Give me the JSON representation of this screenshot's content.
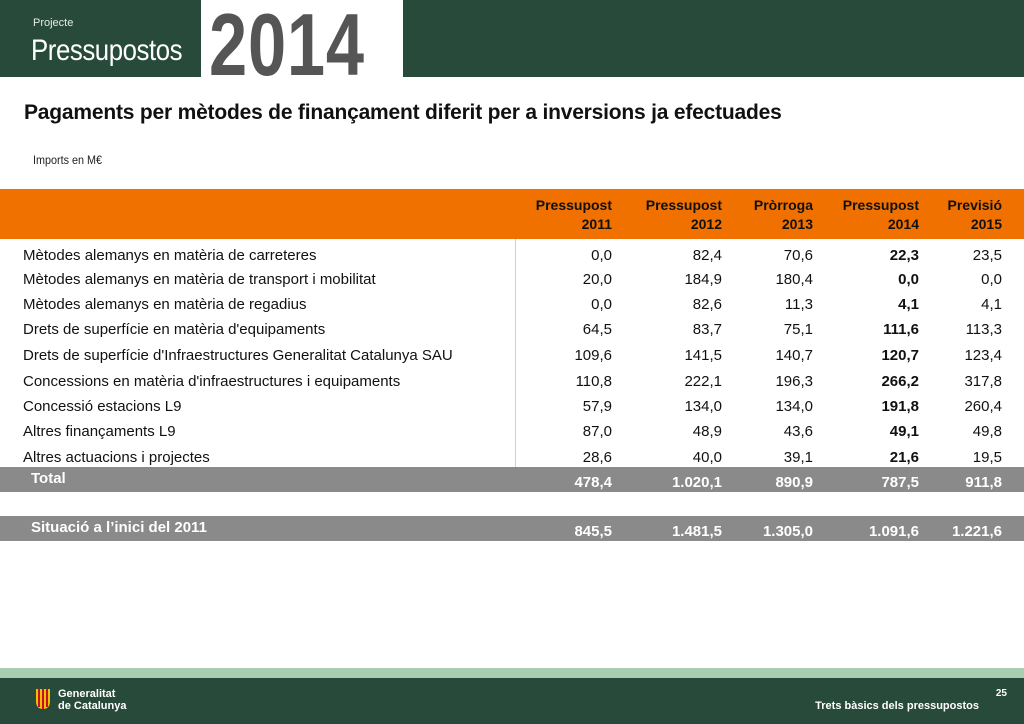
{
  "header": {
    "subtitle": "Projecte",
    "title": "Pressupostos",
    "year": "2014"
  },
  "page": {
    "title": "Pagaments per mètodes de finançament diferit per a inversions ja efectuades",
    "units": "Imports en M€"
  },
  "table": {
    "columns": [
      {
        "line1": "Pressupost",
        "line2": "2011"
      },
      {
        "line1": "Pressupost",
        "line2": "2012"
      },
      {
        "line1": "Pròrroga",
        "line2": "2013"
      },
      {
        "line1": "Pressupost",
        "line2": "2014"
      },
      {
        "line1": "Previsió",
        "line2": "2015"
      }
    ],
    "rows": [
      {
        "label": "Mètodes alemanys en matèria de carreteres",
        "values": [
          "0,0",
          "82,4",
          "70,6",
          "22,3",
          "23,5"
        ]
      },
      {
        "label": "Mètodes alemanys en matèria de transport i mobilitat",
        "values": [
          "20,0",
          "184,9",
          "180,4",
          "0,0",
          "0,0"
        ]
      },
      {
        "label": "Mètodes alemanys en matèria de regadius",
        "values": [
          "0,0",
          "82,6",
          "11,3",
          "4,1",
          "4,1"
        ]
      },
      {
        "label": "Drets de superfície en matèria d'equipaments",
        "values": [
          "64,5",
          "83,7",
          "75,1",
          "111,6",
          "113,3"
        ]
      },
      {
        "label": "Drets de superfície d'Infraestructures Generalitat Catalunya SAU",
        "values": [
          "109,6",
          "141,5",
          "140,7",
          "120,7",
          "123,4"
        ]
      },
      {
        "label": "Concessions en matèria d'infraestructures i equipaments",
        "values": [
          "110,8",
          "222,1",
          "196,3",
          "266,2",
          "317,8"
        ]
      },
      {
        "label": "Concessió estacions L9",
        "values": [
          "57,9",
          "134,0",
          "134,0",
          "191,8",
          "260,4"
        ]
      },
      {
        "label": "Altres finançaments L9",
        "values": [
          "87,0",
          "48,9",
          "43,6",
          "49,1",
          "49,8"
        ]
      },
      {
        "label": "Altres actuacions i projectes",
        "values": [
          "28,6",
          "40,0",
          "39,1",
          "21,6",
          "19,5"
        ]
      }
    ],
    "total": {
      "label": "Total",
      "values": [
        "478,4",
        "1.020,1",
        "890,9",
        "787,5",
        "911,8"
      ]
    },
    "situation": {
      "label": "Situació a l’inici del 2011",
      "values": [
        "845,5",
        "1.481,5",
        "1.305,0",
        "1.091,6",
        "1.221,6"
      ]
    }
  },
  "footer": {
    "org_line1": "Generalitat",
    "org_line2": "de Catalunya",
    "page_number": "25",
    "caption": "Trets bàsics dels pressupostos"
  }
}
